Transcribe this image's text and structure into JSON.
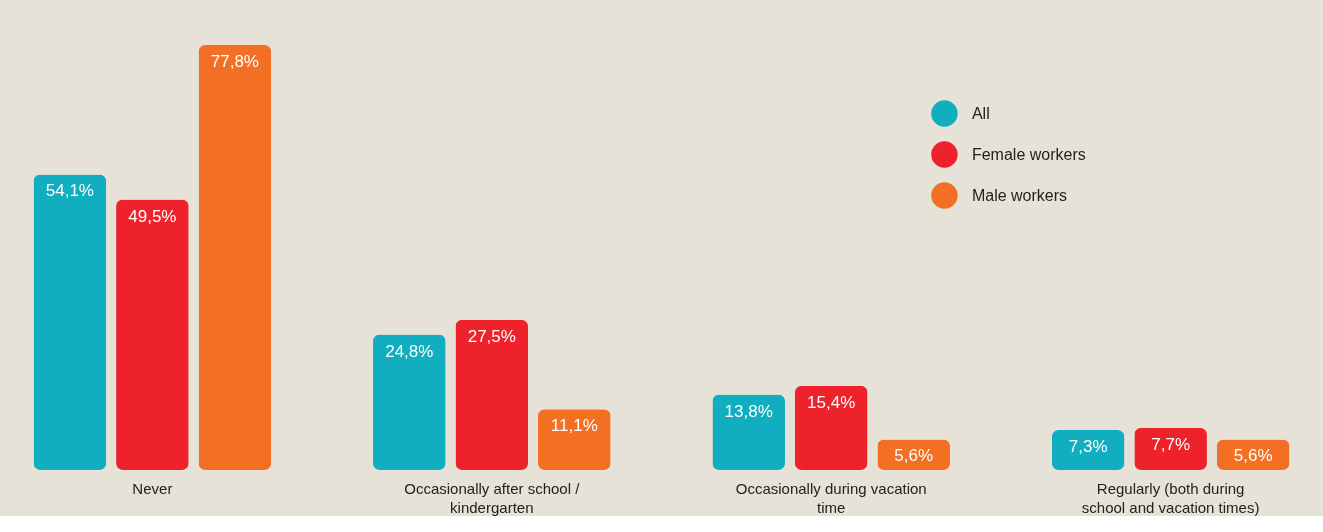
{
  "chart_data": {
    "type": "bar",
    "categories": [
      "Never",
      "Occasionally after school / kindergarten",
      "Occasionally during vacation time",
      "Regularly (both during school and vacation times)"
    ],
    "series": [
      {
        "name": "All",
        "color": "#10aebe",
        "values": [
          54.1,
          24.8,
          13.8,
          7.3
        ],
        "value_labels": [
          "54,1%",
          "24,8%",
          "13,8%",
          "7,3%"
        ]
      },
      {
        "name": "Female workers",
        "color": "#ee222b",
        "values": [
          49.5,
          27.5,
          15.4,
          7.7
        ],
        "value_labels": [
          "49,5%",
          "27,5%",
          "15,4%",
          "7,7%"
        ]
      },
      {
        "name": "Male workers",
        "color": "#f26f24",
        "values": [
          77.8,
          11.1,
          5.6,
          5.6
        ],
        "value_labels": [
          "77,8%",
          "11,1%",
          "5,6%",
          "5,6%"
        ]
      }
    ],
    "legend": "top right",
    "grid": false
  }
}
